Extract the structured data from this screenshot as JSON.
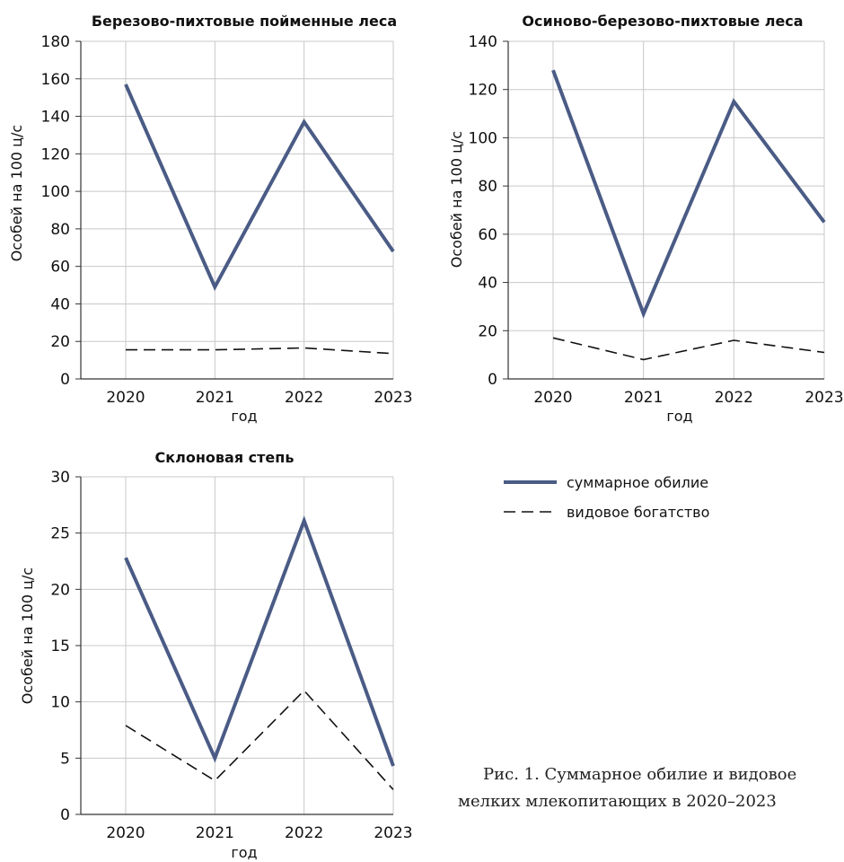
{
  "chart_data": [
    {
      "type": "line",
      "title": "Березово-пихтовые пойменные леса",
      "ylabel": "Особей на 100 ц/с",
      "xlabel": "год",
      "categories": [
        "2020",
        "2021",
        "2022",
        "2023"
      ],
      "ylim": [
        0,
        180
      ],
      "yticks": [
        0,
        20,
        40,
        60,
        80,
        100,
        120,
        140,
        160,
        180
      ],
      "grid": true,
      "series": [
        {
          "name": "суммарное обилие",
          "values": [
            157,
            49,
            137,
            68
          ],
          "color": "#4a5b85",
          "dash": "solid"
        },
        {
          "name": "видовое богатство",
          "values": [
            15.5,
            15.5,
            16.5,
            13.5
          ],
          "color": "#111111",
          "dash": "dashed"
        }
      ]
    },
    {
      "type": "line",
      "title": "Осиново-березово-пихтовые леса",
      "ylabel": "Особей на 100 ц/с",
      "xlabel": "год",
      "categories": [
        "2020",
        "2021",
        "2022",
        "2023"
      ],
      "ylim": [
        0,
        140
      ],
      "yticks": [
        0,
        20,
        40,
        60,
        80,
        100,
        120,
        140
      ],
      "grid": true,
      "series": [
        {
          "name": "суммарное обилие",
          "values": [
            128,
            27,
            115,
            65
          ],
          "color": "#4a5b85",
          "dash": "solid"
        },
        {
          "name": "видовое богатство",
          "values": [
            17,
            8,
            16,
            11
          ],
          "color": "#111111",
          "dash": "dashed"
        }
      ]
    },
    {
      "type": "line",
      "title": "Склоновая степь",
      "ylabel": "Особей на 100 ц/с",
      "xlabel": "год",
      "categories": [
        "2020",
        "2021",
        "2022",
        "2023"
      ],
      "ylim": [
        0,
        30
      ],
      "yticks": [
        0,
        5,
        10,
        15,
        20,
        25,
        30
      ],
      "grid": true,
      "series": [
        {
          "name": "суммарное обилие",
          "values": [
            22.8,
            5,
            26.1,
            4.3
          ],
          "color": "#4a5b85",
          "dash": "solid"
        },
        {
          "name": "видовое богатство",
          "values": [
            7.9,
            3,
            11,
            2.2
          ],
          "color": "#111111",
          "dash": "dashed"
        }
      ]
    }
  ],
  "legend": {
    "placement": "right of bottom chart",
    "items": [
      {
        "label": "суммарное обилие",
        "color": "#4a5b85",
        "dash": "solid"
      },
      {
        "label": "видовое богатство",
        "color": "#111111",
        "dash": "dashed"
      }
    ]
  },
  "caption": {
    "line1": "Рис. 1. Суммарное обилие и видовое",
    "line2": "мелких млекопитающих в 2020–2023"
  }
}
